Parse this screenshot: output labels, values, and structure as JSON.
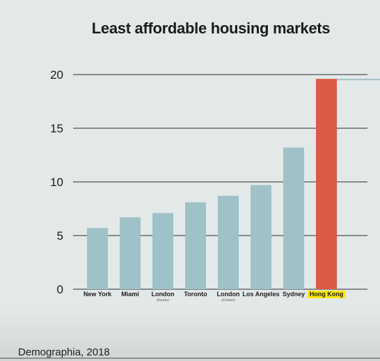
{
  "chart_data": {
    "type": "bar",
    "title": "Least affordable housing markets",
    "categories": [
      "New York",
      "Miami",
      "London",
      "Toronto",
      "London",
      "Los Angeles",
      "Sydney",
      "Hong Kong"
    ],
    "sublabels": [
      "",
      "",
      "(Exurbs)",
      "",
      "(Greater)",
      "",
      "",
      ""
    ],
    "values": [
      5.7,
      6.7,
      7.1,
      8.1,
      8.7,
      9.7,
      13.2,
      19.6
    ],
    "highlight_index": 7,
    "y_ticks": [
      "0",
      "5",
      "10",
      "15",
      "20"
    ],
    "ylim": [
      0,
      20
    ],
    "grid": true,
    "colors": {
      "bar": "#9fc1c8",
      "highlight": "#db5a48",
      "highlight_label_bg": "#ffea00",
      "grid": "#2b2b2b"
    }
  },
  "source": "Demographia, 2018"
}
